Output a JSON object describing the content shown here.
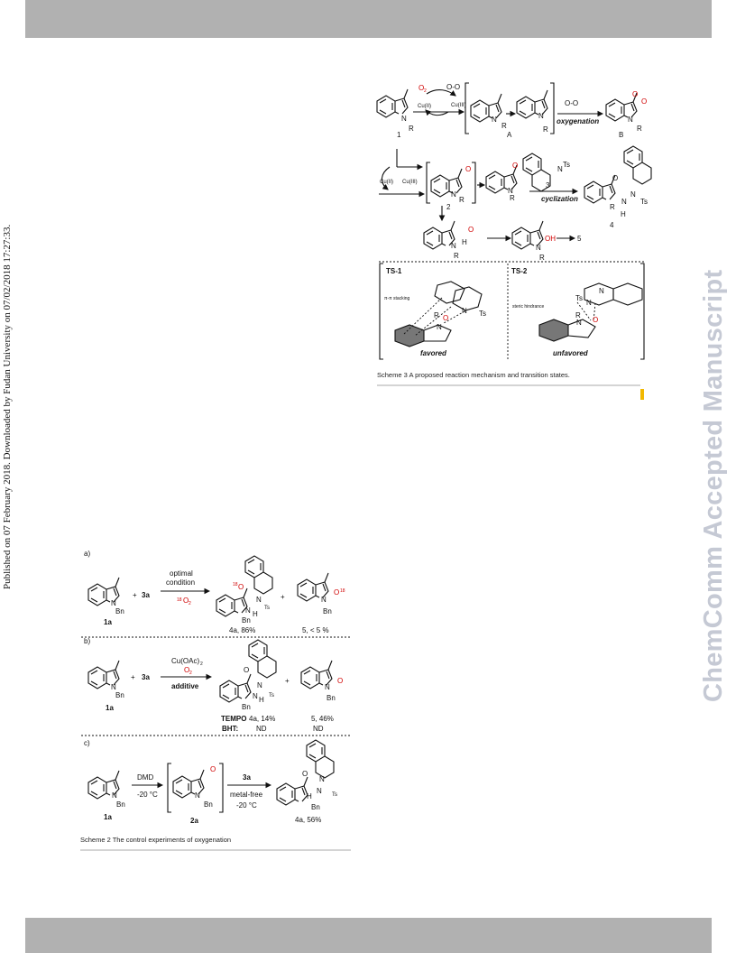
{
  "side": {
    "published": "Published on 07 February 2018. Downloaded by Fudan University on 07/02/2018 17:27:33.",
    "manuscript": "ChemComm Accepted Manuscript"
  },
  "scheme3": {
    "caption": "Scheme 3  A proposed reaction mechanism and transition states.",
    "o2": "O",
    "o2_sub": "2",
    "superoxide": "O-O",
    "cu_left": "Cu(II)",
    "cu_right": "Cu(III)",
    "cu_left2": "Cu(II)",
    "cu_right2": "Cu(III)",
    "oxygenation": "oxygenation",
    "cyclization": "cyclization",
    "label_1": "1",
    "label_A": "A",
    "label_B": "B",
    "label_2": "2",
    "label_3": "3",
    "label_4": "4",
    "label_5": "5",
    "N": "N",
    "R": "R",
    "Ts": "Ts",
    "H": "H",
    "O": "O",
    "OH": "OH",
    "ts1": "TS-1",
    "ts2": "TS-2",
    "stacking": "π-π stacking",
    "steric": "steric hindrance",
    "favored": "favored",
    "unfavored": "unfavored"
  },
  "scheme2": {
    "caption": "Scheme 2 The control experiments of oxygenation",
    "a": {
      "tag": "a)",
      "plus": "+",
      "reagent": "3a",
      "cond1": "optimal",
      "cond2": "condition",
      "o18": "O",
      "o18_sup": "18",
      "o18_sub": "2",
      "sm": "1a",
      "product": "4a, 86%",
      "side": "5, < 5 %",
      "o_label": "O",
      "sup18": "18"
    },
    "b": {
      "tag": "b)",
      "plus": "+",
      "reagent": "3a",
      "cond1": "Cu(OAc)",
      "cond1_sub": "2",
      "cond2": "O",
      "cond2_sub": "2",
      "additive": "additive",
      "sm": "1a",
      "tempo": "TEMPO",
      "bht": "BHT:",
      "tempo_4a": "4a, 14%",
      "bht_4a": "ND",
      "tempo_5": "5, 46%",
      "bht_5": "ND"
    },
    "c": {
      "tag": "c)",
      "dmd": "DMD",
      "temp1": "-20 °C",
      "reagent": "3a",
      "metal": "metal-free",
      "temp2": "-20 °C",
      "sm": "1a",
      "inter": "2a",
      "product": "4a, 56%"
    },
    "N": "N",
    "Bn": "Bn",
    "Ts": "Ts",
    "H": "H",
    "O": "O"
  }
}
